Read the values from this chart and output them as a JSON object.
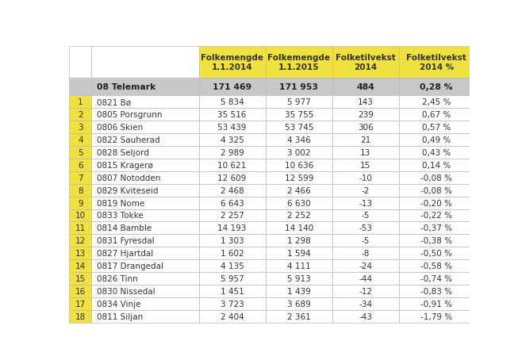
{
  "header_labels": [
    "Folkemengde\n1.1.2014",
    "Folkemengde\n1.1.2015",
    "Folketilvekst\n2014",
    "Folketilvekst\n2014 %"
  ],
  "summary_row": {
    "rank": "",
    "name": "08 Telemark",
    "col1": "171 469",
    "col2": "171 953",
    "col3": "484",
    "col4": "0,28 %"
  },
  "rows": [
    {
      "rank": "1",
      "name": "0821 Bø",
      "col1": "5 834",
      "col2": "5 977",
      "col3": "143",
      "col4": "2,45 %"
    },
    {
      "rank": "2",
      "name": "0805 Porsgrunn",
      "col1": "35 516",
      "col2": "35 755",
      "col3": "239",
      "col4": "0,67 %"
    },
    {
      "rank": "3",
      "name": "0806 Skien",
      "col1": "53 439",
      "col2": "53 745",
      "col3": "306",
      "col4": "0,57 %"
    },
    {
      "rank": "4",
      "name": "0822 Sauherad",
      "col1": "4 325",
      "col2": "4 346",
      "col3": "21",
      "col4": "0,49 %"
    },
    {
      "rank": "5",
      "name": "0828 Seljord",
      "col1": "2 989",
      "col2": "3 002",
      "col3": "13",
      "col4": "0,43 %"
    },
    {
      "rank": "6",
      "name": "0815 Kragerø",
      "col1": "10 621",
      "col2": "10 636",
      "col3": "15",
      "col4": "0,14 %"
    },
    {
      "rank": "7",
      "name": "0807 Notodden",
      "col1": "12 609",
      "col2": "12 599",
      "col3": "-10",
      "col4": "-0,08 %"
    },
    {
      "rank": "8",
      "name": "0829 Kviteseid",
      "col1": "2 468",
      "col2": "2 466",
      "col3": "-2",
      "col4": "-0,08 %"
    },
    {
      "rank": "9",
      "name": "0819 Nome",
      "col1": "6 643",
      "col2": "6 630",
      "col3": "-13",
      "col4": "-0,20 %"
    },
    {
      "rank": "10",
      "name": "0833 Tokke",
      "col1": "2 257",
      "col2": "2 252",
      "col3": "-5",
      "col4": "-0,22 %"
    },
    {
      "rank": "11",
      "name": "0814 Bamble",
      "col1": "14 193",
      "col2": "14 140",
      "col3": "-53",
      "col4": "-0,37 %"
    },
    {
      "rank": "12",
      "name": "0831 Fyresdal",
      "col1": "1 303",
      "col2": "1 298",
      "col3": "-5",
      "col4": "-0,38 %"
    },
    {
      "rank": "13",
      "name": "0827 Hjartdal",
      "col1": "1 602",
      "col2": "1 594",
      "col3": "-8",
      "col4": "-0,50 %"
    },
    {
      "rank": "14",
      "name": "0817 Drangedal",
      "col1": "4 135",
      "col2": "4 111",
      "col3": "-24",
      "col4": "-0,58 %"
    },
    {
      "rank": "15",
      "name": "0826 Tinn",
      "col1": "5 957",
      "col2": "5 913",
      "col3": "-44",
      "col4": "-0,74 %"
    },
    {
      "rank": "16",
      "name": "0830 Nissedal",
      "col1": "1 451",
      "col2": "1 439",
      "col3": "-12",
      "col4": "-0,83 %"
    },
    {
      "rank": "17",
      "name": "0834 Vinje",
      "col1": "3 723",
      "col2": "3 689",
      "col3": "-34",
      "col4": "-0,91 %"
    },
    {
      "rank": "18",
      "name": "0811 Siljan",
      "col1": "2 404",
      "col2": "2 361",
      "col3": "-43",
      "col4": "-1,79 %"
    }
  ],
  "header_bg": "#F0E040",
  "summary_bg": "#C8C8C8",
  "rank_bg": "#F0E040",
  "row_bg": "#FFFFFF",
  "border_color": "#BBBBBB",
  "text_color": "#333333",
  "figsize": [
    6.58,
    4.6
  ],
  "dpi": 100
}
